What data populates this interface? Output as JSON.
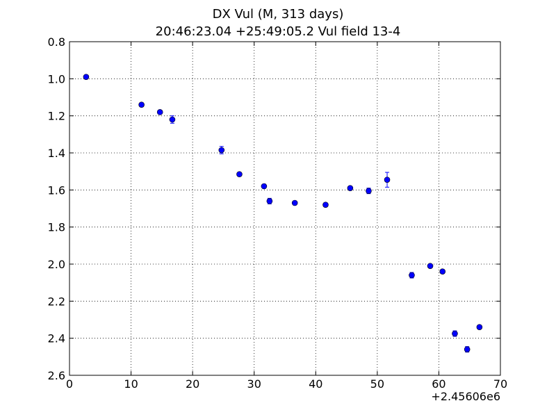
{
  "chart_data": {
    "type": "scatter",
    "title": "DX Vul (M, 313 days)",
    "subtitle": "20:46:23.04 +25:49:05.2 Vul field 13-4",
    "x_offset_label": "+2.45606e6",
    "xlim": [
      0,
      70
    ],
    "ylim": [
      0.8,
      2.6
    ],
    "y_inverted": true,
    "grid": true,
    "x_ticks": [
      0,
      10,
      20,
      30,
      40,
      50,
      60,
      70
    ],
    "y_ticks": [
      0.8,
      1.0,
      1.2,
      1.4,
      1.6,
      1.8,
      2.0,
      2.2,
      2.4,
      2.6
    ],
    "x_tick_labels": [
      "0",
      "10",
      "20",
      "30",
      "40",
      "50",
      "60",
      "70"
    ],
    "y_tick_labels": [
      "0.8",
      "1.0",
      "1.2",
      "1.4",
      "1.6",
      "1.8",
      "2.0",
      "2.2",
      "2.4",
      "2.6"
    ],
    "marker_color": "#0000ff",
    "series": [
      {
        "points": [
          {
            "x": 2.7,
            "y": 0.99,
            "err": 0.01
          },
          {
            "x": 11.7,
            "y": 1.14,
            "err": 0.01
          },
          {
            "x": 14.7,
            "y": 1.18,
            "err": 0.01
          },
          {
            "x": 16.7,
            "y": 1.22,
            "err": 0.02
          },
          {
            "x": 24.7,
            "y": 1.385,
            "err": 0.02
          },
          {
            "x": 27.6,
            "y": 1.515,
            "err": 0.01
          },
          {
            "x": 31.6,
            "y": 1.58,
            "err": 0.01
          },
          {
            "x": 32.5,
            "y": 1.66,
            "err": 0.015
          },
          {
            "x": 36.6,
            "y": 1.67,
            "err": 0.01
          },
          {
            "x": 41.6,
            "y": 1.68,
            "err": 0.01
          },
          {
            "x": 45.6,
            "y": 1.59,
            "err": 0.01
          },
          {
            "x": 48.6,
            "y": 1.605,
            "err": 0.015
          },
          {
            "x": 51.6,
            "y": 1.545,
            "err": 0.04
          },
          {
            "x": 55.6,
            "y": 2.06,
            "err": 0.015
          },
          {
            "x": 58.6,
            "y": 2.01,
            "err": 0.01
          },
          {
            "x": 60.6,
            "y": 2.04,
            "err": 0.01
          },
          {
            "x": 62.6,
            "y": 2.375,
            "err": 0.015
          },
          {
            "x": 64.6,
            "y": 2.46,
            "err": 0.015
          },
          {
            "x": 66.6,
            "y": 2.34,
            "err": 0.01
          }
        ]
      }
    ]
  }
}
